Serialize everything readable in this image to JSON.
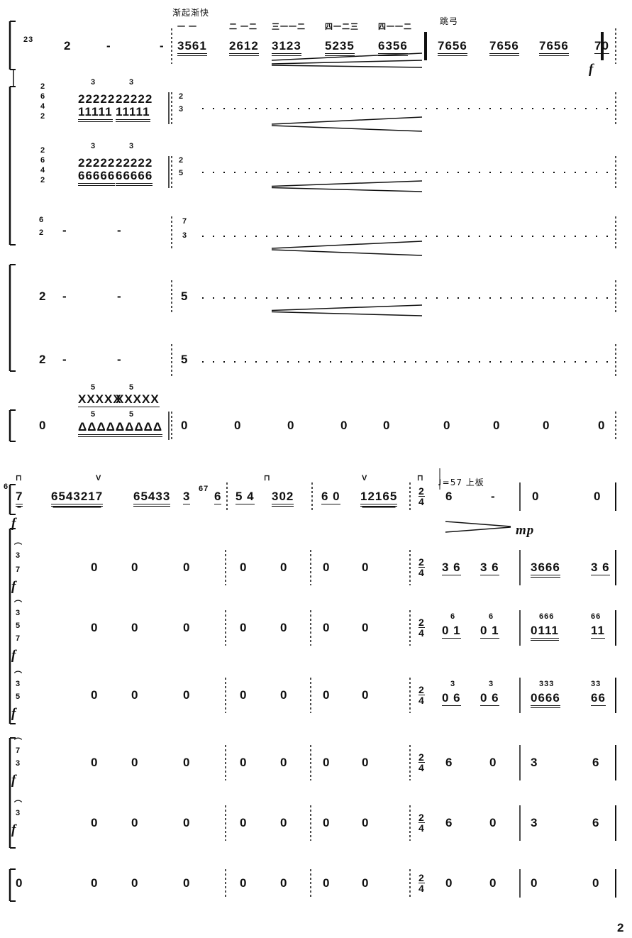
{
  "page_number": "2",
  "system1": {
    "annotation_accel": "渐起渐快",
    "annotation_bowing": "跳弓",
    "dynamic": "f",
    "staff1": {
      "grace": "23",
      "notes": [
        "2",
        "-",
        "-",
        "3561",
        "2612",
        "3123",
        "5235",
        "6356",
        "7656",
        "7656",
        "7656",
        "70"
      ],
      "fingering": [
        "一 一",
        "二 一二",
        "三一一二",
        "四一二三",
        "四一一二"
      ]
    },
    "staff2": {
      "chord": [
        "2",
        "6",
        "4",
        "2"
      ],
      "tuplet": "3",
      "upper": [
        "22222",
        "22222",
        "2"
      ],
      "lower": [
        "11111",
        "11111",
        "3"
      ]
    },
    "staff3": {
      "chord": [
        "2",
        "6",
        "4",
        "2"
      ],
      "tuplet": "3",
      "upper": [
        "22222",
        "22222",
        "2"
      ],
      "lower": [
        "66666",
        "66666",
        "5"
      ]
    },
    "staff4": {
      "upper": [
        "6",
        "7"
      ],
      "lower": [
        "2",
        "3"
      ],
      "rests": [
        "-",
        "-"
      ]
    },
    "staff5": {
      "notes": [
        "2",
        "-",
        "-",
        "5"
      ]
    },
    "staff6": {
      "notes": [
        "2",
        "-",
        "-",
        "5"
      ]
    },
    "staff7": {
      "tuplet": "5",
      "upper": [
        "XXXXX",
        "XXXXX"
      ],
      "lower": [
        "ΔΔΔΔΔ",
        "ΔΔΔΔΔ"
      ],
      "notes": [
        "0",
        "0",
        "0",
        "0",
        "0",
        "0",
        "0",
        "0",
        "0",
        "0"
      ]
    }
  },
  "system2": {
    "tempo": "♩=57 上板",
    "time_signature": {
      "top": "2",
      "bottom": "4"
    },
    "dynamic_f": "f",
    "dynamic_mp": "mp",
    "staff1": {
      "graces": [
        "6",
        "67"
      ],
      "notes": [
        "7",
        "6543217",
        "65433",
        "3",
        "6",
        "5 4",
        "302",
        "6 0",
        "12165",
        "6",
        "-",
        "0",
        "0"
      ],
      "bowing": [
        "⊓",
        "V",
        "⊓",
        "⊓",
        "V"
      ]
    },
    "staff2": {
      "fermata_chord": [
        "3",
        "7"
      ],
      "notes": [
        "0",
        "0",
        "0",
        "0",
        "0",
        "0",
        "0",
        "3 6",
        "3 6",
        "3666",
        "3 6"
      ]
    },
    "staff3": {
      "fermata_chord": [
        "3",
        "5",
        "7"
      ],
      "notes": [
        "0",
        "0",
        "0",
        "0",
        "0",
        "0",
        "0"
      ],
      "upper": [
        "6",
        "6",
        "666",
        "66"
      ],
      "lower": [
        "0 1",
        "0 1",
        "0111",
        "11"
      ]
    },
    "staff4": {
      "fermata_chord": [
        "3",
        "5"
      ],
      "notes": [
        "0",
        "0",
        "0",
        "0",
        "0",
        "0",
        "0"
      ],
      "upper": [
        "3",
        "3",
        "333",
        "33"
      ],
      "lower": [
        "0 6",
        "0 6",
        "0666",
        "66"
      ]
    },
    "staff5": {
      "fermata_chord": [
        "7",
        "3"
      ],
      "notes": [
        "0",
        "0",
        "0",
        "0",
        "0",
        "0",
        "0",
        "6",
        "0",
        "3",
        "6"
      ]
    },
    "staff6": {
      "fermata_chord": [
        "3"
      ],
      "notes": [
        "0",
        "0",
        "0",
        "0",
        "0",
        "0",
        "0",
        "6",
        "0",
        "3",
        "6"
      ]
    },
    "staff7": {
      "notes": [
        "0",
        "0",
        "0",
        "0",
        "0",
        "0",
        "0",
        "0",
        "0",
        "0",
        "0",
        "0"
      ]
    }
  }
}
